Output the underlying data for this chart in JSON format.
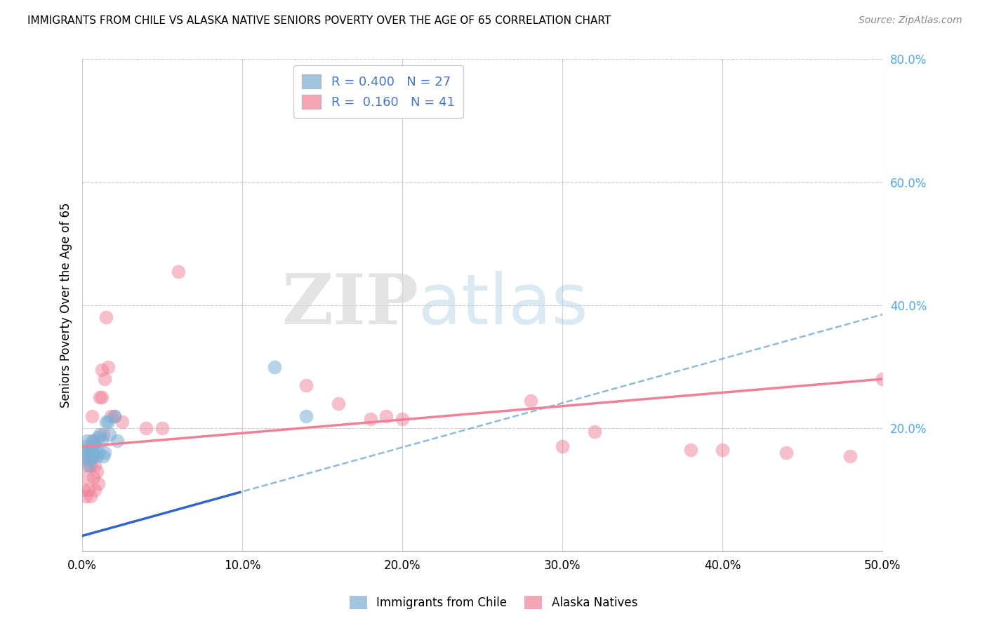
{
  "title": "IMMIGRANTS FROM CHILE VS ALASKA NATIVE SENIORS POVERTY OVER THE AGE OF 65 CORRELATION CHART",
  "source": "Source: ZipAtlas.com",
  "ylabel": "Seniors Poverty Over the Age of 65",
  "xlabel_ticks": [
    "0.0%",
    "10.0%",
    "20.0%",
    "30.0%",
    "40.0%",
    "50.0%"
  ],
  "xlabel_vals": [
    0.0,
    0.1,
    0.2,
    0.3,
    0.4,
    0.5
  ],
  "ylabel_ticks_right": [
    "20.0%",
    "40.0%",
    "60.0%",
    "80.0%"
  ],
  "ylabel_vals_right": [
    0.2,
    0.4,
    0.6,
    0.8
  ],
  "xlim": [
    0.0,
    0.5
  ],
  "ylim": [
    0.0,
    0.8
  ],
  "legend_label1": "Immigrants from Chile",
  "legend_label2": "Alaska Natives",
  "blue_color": "#7bafd4",
  "pink_color": "#f08098",
  "trend_blue_dashed_color": "#7bafd4",
  "trend_pink_solid_color": "#f08098",
  "trend_blue_solid_color": "#3366cc",
  "watermark_zip": "ZIP",
  "watermark_atlas": "atlas",
  "blue_intercept": 0.025,
  "blue_slope": 0.72,
  "pink_intercept": 0.17,
  "pink_slope": 0.22,
  "blue_points_x": [
    0.001,
    0.002,
    0.003,
    0.003,
    0.004,
    0.004,
    0.005,
    0.005,
    0.006,
    0.006,
    0.007,
    0.007,
    0.008,
    0.009,
    0.01,
    0.01,
    0.011,
    0.012,
    0.013,
    0.014,
    0.015,
    0.016,
    0.017,
    0.02,
    0.022,
    0.12,
    0.14
  ],
  "blue_points_y": [
    0.16,
    0.17,
    0.15,
    0.18,
    0.16,
    0.14,
    0.17,
    0.15,
    0.18,
    0.16,
    0.17,
    0.155,
    0.175,
    0.155,
    0.185,
    0.16,
    0.19,
    0.18,
    0.155,
    0.16,
    0.21,
    0.21,
    0.19,
    0.22,
    0.18,
    0.3,
    0.22
  ],
  "pink_points_x": [
    0.001,
    0.002,
    0.002,
    0.003,
    0.003,
    0.004,
    0.005,
    0.005,
    0.006,
    0.007,
    0.007,
    0.008,
    0.008,
    0.009,
    0.01,
    0.011,
    0.012,
    0.012,
    0.013,
    0.014,
    0.015,
    0.016,
    0.018,
    0.02,
    0.025,
    0.04,
    0.05,
    0.06,
    0.14,
    0.16,
    0.18,
    0.19,
    0.2,
    0.28,
    0.3,
    0.32,
    0.38,
    0.4,
    0.44,
    0.48,
    0.5
  ],
  "pink_points_y": [
    0.1,
    0.14,
    0.09,
    0.12,
    0.155,
    0.1,
    0.14,
    0.09,
    0.22,
    0.12,
    0.18,
    0.1,
    0.14,
    0.13,
    0.11,
    0.25,
    0.295,
    0.25,
    0.19,
    0.28,
    0.38,
    0.3,
    0.22,
    0.22,
    0.21,
    0.2,
    0.2,
    0.455,
    0.27,
    0.24,
    0.215,
    0.22,
    0.215,
    0.245,
    0.17,
    0.195,
    0.165,
    0.165,
    0.16,
    0.155,
    0.28
  ]
}
